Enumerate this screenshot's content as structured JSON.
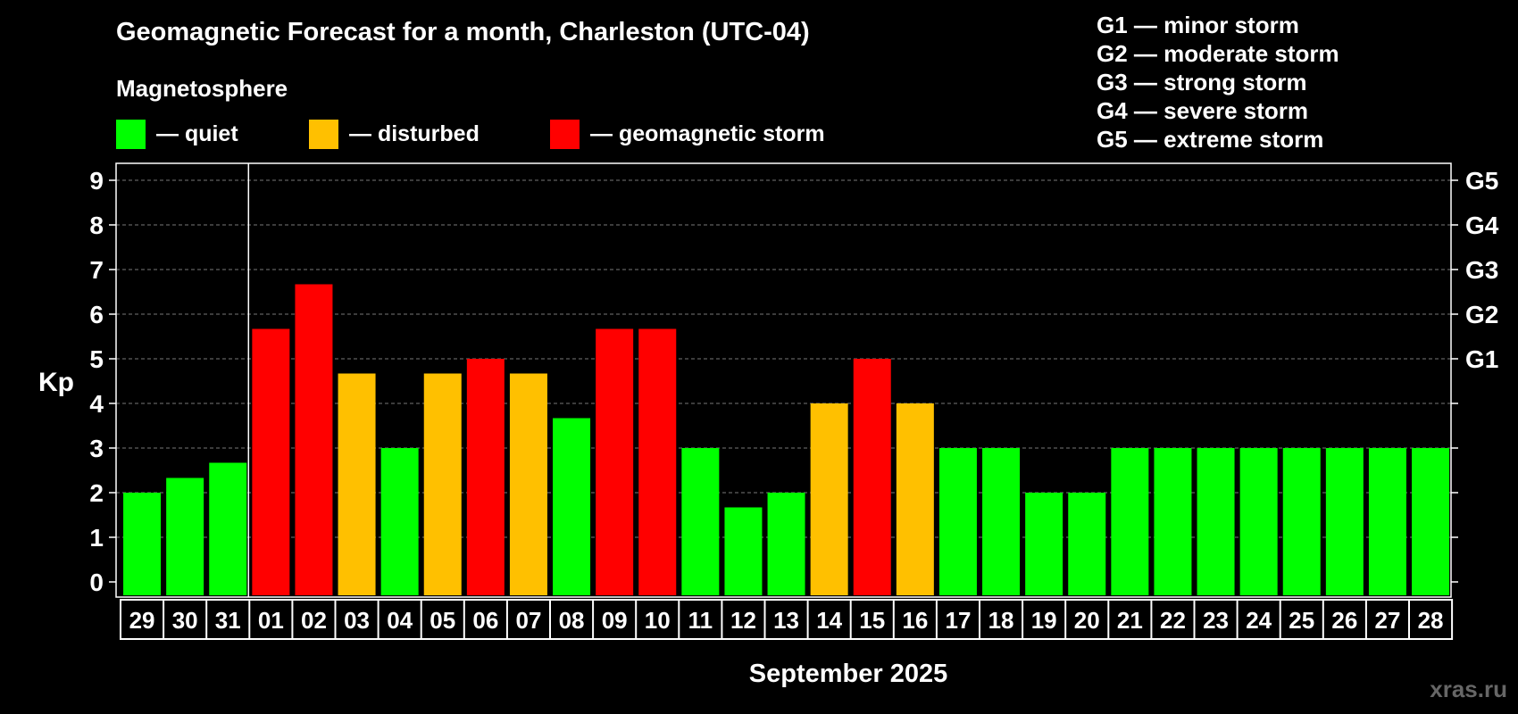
{
  "colors": {
    "quiet": "#00ff00",
    "disturbed": "#ffc000",
    "storm": "#ff0000",
    "background": "#000000",
    "grid": "#777777"
  },
  "legend": {
    "heading": "Magnetosphere",
    "quiet": "— quiet",
    "disturbed": "— disturbed",
    "storm": "— geomagnetic storm"
  },
  "storm_levels": [
    "G1 — minor storm",
    "G2 — moderate storm",
    "G3 — strong storm",
    "G4 — severe storm",
    "G5 — extreme storm"
  ],
  "watermark": "xras.ru",
  "chart_data": {
    "type": "bar",
    "title": "Geomagnetic Forecast for a month, Charleston (UTC-04)",
    "xlabel": "September 2025",
    "ylabel": "Kp",
    "ylim": [
      0,
      9.3
    ],
    "yticks": [
      0,
      1,
      2,
      3,
      4,
      5,
      6,
      7,
      8,
      9
    ],
    "right_axis_labels": [
      {
        "kp": 5,
        "label": "G1"
      },
      {
        "kp": 6,
        "label": "G2"
      },
      {
        "kp": 7,
        "label": "G3"
      },
      {
        "kp": 8,
        "label": "G4"
      },
      {
        "kp": 9,
        "label": "G5"
      }
    ],
    "grid": true,
    "month_boundary_after_index": 2,
    "categories": [
      "29",
      "30",
      "31",
      "01",
      "02",
      "03",
      "04",
      "05",
      "06",
      "07",
      "08",
      "09",
      "10",
      "11",
      "12",
      "13",
      "14",
      "15",
      "16",
      "17",
      "18",
      "19",
      "20",
      "21",
      "22",
      "23",
      "24",
      "25",
      "26",
      "27",
      "28"
    ],
    "values": [
      2.0,
      2.33,
      2.67,
      5.67,
      6.67,
      4.67,
      3.0,
      4.67,
      5.0,
      4.67,
      3.67,
      5.67,
      5.67,
      3.0,
      1.67,
      2.0,
      4.0,
      5.0,
      4.0,
      3.0,
      3.0,
      2.0,
      2.0,
      3.0,
      3.0,
      3.0,
      3.0,
      3.0,
      3.0,
      3.0,
      3.0
    ],
    "status": [
      "quiet",
      "quiet",
      "quiet",
      "storm",
      "storm",
      "disturbed",
      "quiet",
      "disturbed",
      "storm",
      "disturbed",
      "quiet",
      "storm",
      "storm",
      "quiet",
      "quiet",
      "quiet",
      "disturbed",
      "storm",
      "disturbed",
      "quiet",
      "quiet",
      "quiet",
      "quiet",
      "quiet",
      "quiet",
      "quiet",
      "quiet",
      "quiet",
      "quiet",
      "quiet",
      "quiet"
    ]
  }
}
